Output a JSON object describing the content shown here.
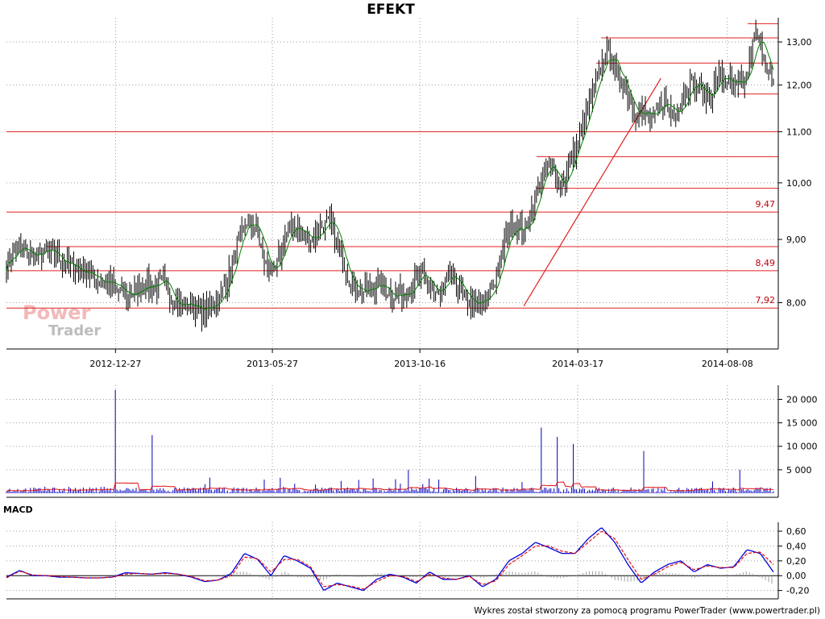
{
  "chart_data": [
    {
      "type": "candlestick",
      "title": "EFEKT",
      "x_tick_labels": [
        "2012-12-27",
        "2013-05-27",
        "2013-10-16",
        "2014-03-17",
        "2014-08-08"
      ],
      "y_tick_labels": [
        "8,00",
        "9,00",
        "10,00",
        "11,00",
        "12,00",
        "13,00"
      ],
      "y_tick_values": [
        8,
        9,
        10,
        11,
        12,
        13
      ],
      "ylim": [
        7.35,
        13.6
      ],
      "y_scale": "log",
      "horizontal_levels": [
        {
          "value": 7.92,
          "label": "7,92"
        },
        {
          "value": 8.49,
          "label": "8,49"
        },
        {
          "value": 9.47,
          "label": "9,47"
        },
        {
          "value": 8.88,
          "label": ""
        },
        {
          "value": 9.9,
          "label": ""
        },
        {
          "value": 10.5,
          "label": ""
        },
        {
          "value": 11.0,
          "label": ""
        },
        {
          "value": 12.5,
          "label": ""
        },
        {
          "value": 13.1,
          "label": ""
        },
        {
          "value": 13.45,
          "label": ""
        },
        {
          "value": 11.8,
          "label": ""
        }
      ],
      "trend_line": {
        "from": [
          "2014-01-24",
          7.95
        ],
        "to": [
          "2014-06-05",
          12.15
        ]
      },
      "close_series_weekly": [
        8.6,
        8.85,
        8.8,
        8.7,
        8.8,
        8.75,
        8.65,
        8.55,
        8.5,
        8.45,
        8.35,
        8.3,
        8.2,
        8.1,
        8.15,
        8.3,
        8.25,
        8.3,
        8.05,
        7.95,
        8.0,
        7.85,
        7.95,
        8.05,
        8.4,
        8.9,
        9.3,
        9.2,
        8.6,
        8.4,
        9.0,
        9.25,
        9.1,
        9.0,
        9.2,
        9.3,
        8.8,
        8.4,
        8.2,
        8.15,
        8.3,
        8.2,
        8.1,
        8.15,
        8.3,
        8.4,
        8.2,
        8.1,
        8.45,
        8.2,
        8.0,
        7.95,
        8.05,
        8.4,
        9.0,
        9.3,
        9.1,
        9.6,
        10.2,
        10.3,
        9.9,
        10.4,
        10.9,
        11.5,
        12.2,
        12.8,
        12.3,
        11.9,
        11.4,
        11.4,
        11.2,
        11.7,
        11.4,
        11.6,
        12.1,
        11.9,
        11.7,
        12.2,
        12.1,
        11.9,
        12.1,
        13.2,
        12.7,
        11.9
      ]
    },
    {
      "type": "bar",
      "title": "",
      "y_tick_labels": [
        "5 000",
        "10 000",
        "15 000",
        "20 000"
      ],
      "y_tick_values": [
        5000,
        10000,
        15000,
        20000
      ],
      "ylim": [
        0,
        23000
      ],
      "spikes": [
        {
          "date": "2012-12-27",
          "value": 22000
        },
        {
          "date": "2013-01-31",
          "value": 12400
        },
        {
          "date": "2013-10-05",
          "value": 5000
        },
        {
          "date": "2014-02-10",
          "value": 14000
        },
        {
          "date": "2014-02-26",
          "value": 12000
        },
        {
          "date": "2014-03-12",
          "value": 10500
        },
        {
          "date": "2014-05-20",
          "value": 9000
        },
        {
          "date": "2014-08-20",
          "value": 5000
        }
      ],
      "baseline_volume": 700
    },
    {
      "type": "line",
      "title": "MACD",
      "y_tick_labels": [
        "-0,20",
        "0,00",
        "0,20",
        "0,40",
        "0,60"
      ],
      "y_tick_values": [
        -0.2,
        0.0,
        0.2,
        0.4,
        0.6
      ],
      "ylim": [
        -0.28,
        0.72
      ],
      "series": [
        {
          "name": "",
          "values": [
            -0.02,
            0.07,
            0.0,
            0.0,
            -0.02,
            -0.02,
            -0.03,
            -0.03,
            -0.02,
            0.04,
            0.03,
            0.02,
            0.04,
            0.02,
            -0.02,
            -0.08,
            -0.06,
            0.03,
            0.3,
            0.22,
            0.0,
            0.27,
            0.2,
            0.1,
            -0.2,
            -0.1,
            -0.15,
            -0.2,
            -0.05,
            0.02,
            -0.02,
            -0.1,
            0.05,
            -0.05,
            -0.05,
            0.0,
            -0.15,
            -0.05,
            0.2,
            0.3,
            0.45,
            0.38,
            0.3,
            0.3,
            0.5,
            0.65,
            0.45,
            0.15,
            -0.1,
            0.05,
            0.15,
            0.2,
            0.05,
            0.15,
            0.1,
            0.12,
            0.35,
            0.3,
            0.05
          ]
        },
        {
          "name": "",
          "values": [
            -0.03,
            0.06,
            0.01,
            0.0,
            -0.01,
            -0.02,
            -0.03,
            -0.03,
            -0.02,
            0.02,
            0.03,
            0.02,
            0.03,
            0.02,
            -0.01,
            -0.07,
            -0.06,
            0.0,
            0.25,
            0.23,
            0.05,
            0.22,
            0.22,
            0.12,
            -0.15,
            -0.12,
            -0.14,
            -0.18,
            -0.08,
            0.0,
            -0.01,
            -0.08,
            0.02,
            -0.03,
            -0.05,
            -0.01,
            -0.12,
            -0.07,
            0.15,
            0.27,
            0.4,
            0.4,
            0.33,
            0.3,
            0.45,
            0.6,
            0.5,
            0.22,
            -0.05,
            0.02,
            0.12,
            0.18,
            0.08,
            0.13,
            0.11,
            0.11,
            0.3,
            0.32,
            0.15
          ]
        }
      ]
    }
  ],
  "footer": "Wykres został stworzony za pomocą programu PowerTrader (www.powertrader.pl)",
  "watermark": {
    "line1": "Power",
    "line2": "Trader"
  },
  "colors": {
    "candle": "#000000",
    "ma": "#008000",
    "levels": "#e02020",
    "volume": "#0000c0",
    "volume_ma": "#e01010",
    "macd": "#0000e0",
    "signal": "#e01010",
    "histogram": "#a0a0a0"
  }
}
